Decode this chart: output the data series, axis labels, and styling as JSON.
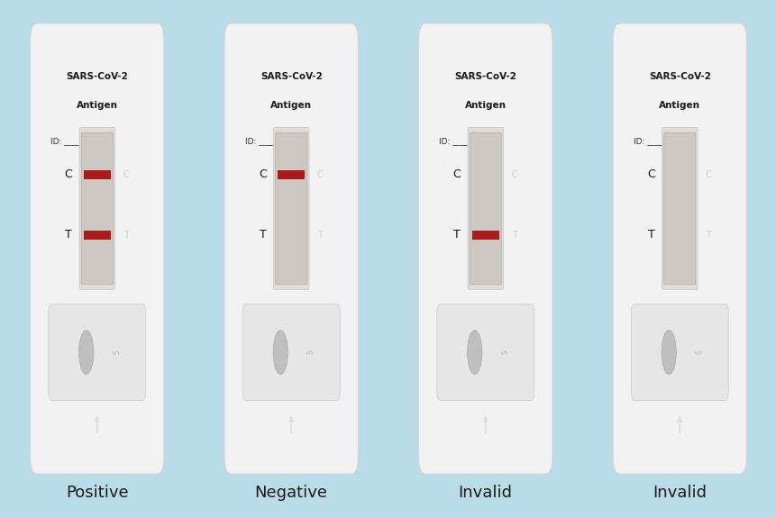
{
  "background_color": "#b8dce8",
  "fig_width": 8.62,
  "fig_height": 5.75,
  "dpi": 100,
  "tests": [
    {
      "label": "Positive",
      "C_line": true,
      "T_line": true
    },
    {
      "label": "Negative",
      "C_line": true,
      "T_line": false
    },
    {
      "label": "Invalid",
      "C_line": false,
      "T_line": true
    },
    {
      "label": "Invalid",
      "C_line": false,
      "T_line": false
    }
  ],
  "card_color": "#f2f2f2",
  "card_edge_color": "#d5d5d5",
  "window_color_top": "#c8c4be",
  "window_color": "#cdc9c2",
  "red_line_color": "#aa1a1a",
  "label_fontsize": 13,
  "ct_fontsize": 9,
  "sars_fontsize": 7.5,
  "id_fontsize": 6.5,
  "faint_ct_color": "#cccccc",
  "well_outer_color": "#e8e8e8",
  "well_inner_color": "#b8b8b8",
  "arrow_color": "#dddddd",
  "s_label_color": "#bbbbbb"
}
